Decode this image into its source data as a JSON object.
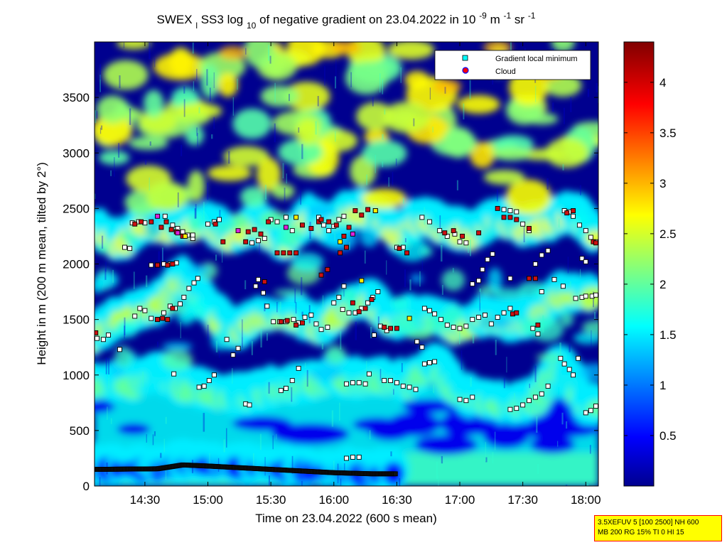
{
  "chart_data": {
    "type": "heatmap",
    "title": {
      "prefix": "SWEX",
      "prefix_sub": "l",
      "mid": "SS3 log",
      "mid_sub": "10",
      "text": " of negative gradient on 23.04.2022 in 10",
      "exp1": "-9",
      "unit1": " m",
      "exp2": "-1",
      "unit2": " sr",
      "exp3": "-1"
    },
    "xlabel": "Time on 23.04.2022 (600 s mean)",
    "ylabel": "Height in m (200 m mean, tilted by 2°)",
    "x_range_hours": [
      14.1,
      18.1
    ],
    "y_range_m": [
      0,
      4000
    ],
    "x_ticks": [
      {
        "value": 14.5,
        "label": "14:30"
      },
      {
        "value": 15.0,
        "label": "15:00"
      },
      {
        "value": 15.5,
        "label": "15:30"
      },
      {
        "value": 16.0,
        "label": "16:00"
      },
      {
        "value": 16.5,
        "label": "16:30"
      },
      {
        "value": 17.0,
        "label": "17:00"
      },
      {
        "value": 17.5,
        "label": "17:30"
      },
      {
        "value": 18.0,
        "label": "18:00"
      }
    ],
    "y_ticks": [
      {
        "value": 0,
        "label": "0"
      },
      {
        "value": 500,
        "label": "500"
      },
      {
        "value": 1000,
        "label": "1000"
      },
      {
        "value": 1500,
        "label": "1500"
      },
      {
        "value": 2000,
        "label": "2000"
      },
      {
        "value": 2500,
        "label": "2500"
      },
      {
        "value": 3000,
        "label": "3000"
      },
      {
        "value": 3500,
        "label": "3500"
      }
    ],
    "colorbar": {
      "range": [
        0,
        4.4
      ],
      "colormap": "jet",
      "ticks": [
        {
          "value": 0.5,
          "label": "0.5"
        },
        {
          "value": 1,
          "label": "1"
        },
        {
          "value": 1.5,
          "label": "1.5"
        },
        {
          "value": 2,
          "label": "2"
        },
        {
          "value": 2.5,
          "label": "2.5"
        },
        {
          "value": 3,
          "label": "3"
        },
        {
          "value": 3.5,
          "label": "3.5"
        },
        {
          "value": 4,
          "label": "4"
        }
      ]
    },
    "legend": {
      "placement": "top-right",
      "entries": [
        {
          "label": "Gradient local minimum",
          "marker": "square",
          "color": "#00ffff"
        },
        {
          "label": "Cloud",
          "marker": "circle",
          "color": "#ff0000"
        }
      ]
    },
    "layers": [
      {
        "name": "surface",
        "path": [
          [
            14.1,
            150
          ],
          [
            14.6,
            155
          ],
          [
            14.8,
            190
          ],
          [
            15.0,
            180
          ],
          [
            15.5,
            150
          ],
          [
            16.0,
            120
          ],
          [
            16.3,
            110
          ],
          [
            16.5,
            110
          ]
        ],
        "level": 0.5
      },
      {
        "name": "low",
        "path": [
          [
            14.1,
            1330
          ],
          [
            14.3,
            1500
          ],
          [
            14.6,
            1600
          ],
          [
            14.8,
            1850
          ],
          [
            15.0,
            1600
          ],
          [
            15.2,
            1350
          ],
          [
            15.4,
            1500
          ],
          [
            15.7,
            1500
          ],
          [
            15.9,
            1400
          ],
          [
            16.1,
            1600
          ],
          [
            16.3,
            1650
          ],
          [
            16.45,
            1450
          ],
          [
            16.6,
            1500
          ],
          [
            16.8,
            1500
          ],
          [
            17.0,
            1400
          ],
          [
            17.2,
            1500
          ],
          [
            17.4,
            1450
          ],
          [
            17.6,
            1500
          ],
          [
            17.8,
            1700
          ],
          [
            18.1,
            1700
          ]
        ],
        "level": 2.4
      },
      {
        "name": "mid",
        "path": [
          [
            14.1,
            2300
          ],
          [
            14.3,
            2150
          ],
          [
            14.5,
            2350
          ],
          [
            14.7,
            2300
          ],
          [
            15.0,
            2350
          ],
          [
            15.2,
            2200
          ],
          [
            15.4,
            2350
          ],
          [
            15.6,
            2150
          ],
          [
            15.8,
            2400
          ],
          [
            16.0,
            2300
          ],
          [
            16.1,
            2450
          ],
          [
            16.3,
            2450
          ],
          [
            16.5,
            2250
          ],
          [
            16.7,
            2400
          ],
          [
            16.9,
            2300
          ],
          [
            17.1,
            2250
          ],
          [
            17.3,
            2400
          ],
          [
            17.5,
            2300
          ],
          [
            17.7,
            2350
          ],
          [
            17.9,
            2450
          ],
          [
            18.1,
            2200
          ]
        ],
        "level": 2.6
      },
      {
        "name": "lower",
        "path": [
          [
            14.1,
            900
          ],
          [
            14.4,
            900
          ],
          [
            14.6,
            1000
          ],
          [
            14.8,
            880
          ],
          [
            15.1,
            800
          ],
          [
            15.3,
            780
          ],
          [
            15.5,
            850
          ],
          [
            15.8,
            900
          ],
          [
            16.0,
            950
          ],
          [
            16.2,
            930
          ],
          [
            16.4,
            950
          ],
          [
            16.6,
            900
          ],
          [
            16.8,
            1100
          ],
          [
            17.0,
            800
          ],
          [
            17.2,
            750
          ],
          [
            17.4,
            700
          ],
          [
            17.6,
            750
          ],
          [
            17.8,
            1100
          ],
          [
            18.0,
            700
          ],
          [
            18.1,
            700
          ]
        ],
        "level": 2.0
      }
    ],
    "gradient_minima": [
      [
        14.12,
        1330
      ],
      [
        14.17,
        1320
      ],
      [
        14.21,
        1360
      ],
      [
        14.3,
        1230
      ],
      [
        14.34,
        2150
      ],
      [
        14.38,
        2140
      ],
      [
        14.42,
        1530
      ],
      [
        14.46,
        1600
      ],
      [
        14.5,
        1580
      ],
      [
        14.55,
        1510
      ],
      [
        14.6,
        1500
      ],
      [
        14.65,
        1560
      ],
      [
        14.7,
        1620
      ],
      [
        14.74,
        1600
      ],
      [
        14.78,
        1640
      ],
      [
        14.81,
        1700
      ],
      [
        14.85,
        1780
      ],
      [
        14.89,
        1830
      ],
      [
        14.92,
        1870
      ],
      [
        14.55,
        1990
      ],
      [
        14.6,
        1990
      ],
      [
        14.65,
        2000
      ],
      [
        14.7,
        2000
      ],
      [
        14.75,
        2010
      ],
      [
        14.4,
        2370
      ],
      [
        14.45,
        2380
      ],
      [
        14.5,
        2370
      ],
      [
        14.66,
        2430
      ],
      [
        14.72,
        2350
      ],
      [
        14.76,
        2320
      ],
      [
        14.8,
        2290
      ],
      [
        14.84,
        2260
      ],
      [
        14.88,
        2230
      ],
      [
        14.73,
        1010
      ],
      [
        14.93,
        890
      ],
      [
        14.97,
        900
      ],
      [
        15.01,
        950
      ],
      [
        15.05,
        1000
      ],
      [
        15.0,
        2360
      ],
      [
        15.05,
        2380
      ],
      [
        15.09,
        2400
      ],
      [
        15.15,
        1320
      ],
      [
        15.2,
        1180
      ],
      [
        15.24,
        1240
      ],
      [
        15.3,
        740
      ],
      [
        15.33,
        730
      ],
      [
        15.38,
        1800
      ],
      [
        15.4,
        1860
      ],
      [
        15.44,
        1740
      ],
      [
        15.47,
        1620
      ],
      [
        15.35,
        2190
      ],
      [
        15.4,
        2210
      ],
      [
        15.45,
        2230
      ],
      [
        15.5,
        2400
      ],
      [
        15.55,
        2380
      ],
      [
        15.62,
        2420
      ],
      [
        15.67,
        2300
      ],
      [
        15.52,
        1480
      ],
      [
        15.57,
        1480
      ],
      [
        15.62,
        1480
      ],
      [
        15.68,
        1500
      ],
      [
        15.72,
        1470
      ],
      [
        15.77,
        1520
      ],
      [
        15.82,
        1540
      ],
      [
        15.86,
        1460
      ],
      [
        15.9,
        1410
      ],
      [
        15.95,
        1430
      ],
      [
        15.58,
        860
      ],
      [
        15.62,
        880
      ],
      [
        15.67,
        950
      ],
      [
        15.72,
        1060
      ],
      [
        15.88,
        2420
      ],
      [
        15.92,
        2350
      ],
      [
        15.96,
        2300
      ],
      [
        16.0,
        2340
      ],
      [
        16.04,
        2400
      ],
      [
        16.08,
        2430
      ],
      [
        16.0,
        1650
      ],
      [
        16.04,
        1700
      ],
      [
        16.07,
        1590
      ],
      [
        16.12,
        1560
      ],
      [
        16.17,
        1560
      ],
      [
        16.22,
        1600
      ],
      [
        16.27,
        1650
      ],
      [
        16.31,
        1700
      ],
      [
        16.35,
        1750
      ],
      [
        16.08,
        1800
      ],
      [
        16.1,
        920
      ],
      [
        16.15,
        930
      ],
      [
        16.2,
        930
      ],
      [
        16.25,
        920
      ],
      [
        16.1,
        250
      ],
      [
        16.15,
        260
      ],
      [
        16.2,
        260
      ],
      [
        16.28,
        1010
      ],
      [
        16.32,
        1360
      ],
      [
        16.37,
        1440
      ],
      [
        16.42,
        1400
      ],
      [
        16.4,
        950
      ],
      [
        16.45,
        950
      ],
      [
        16.5,
        930
      ],
      [
        16.55,
        900
      ],
      [
        16.6,
        890
      ],
      [
        16.65,
        870
      ],
      [
        16.5,
        2150
      ],
      [
        16.55,
        2150
      ],
      [
        16.72,
        1100
      ],
      [
        16.76,
        1110
      ],
      [
        16.8,
        1120
      ],
      [
        16.72,
        1600
      ],
      [
        16.76,
        1580
      ],
      [
        16.8,
        1550
      ],
      [
        16.85,
        1500
      ],
      [
        16.9,
        1450
      ],
      [
        16.95,
        1430
      ],
      [
        17.0,
        1420
      ],
      [
        17.05,
        1440
      ],
      [
        17.1,
        1500
      ],
      [
        17.15,
        1520
      ],
      [
        17.2,
        1540
      ],
      [
        16.7,
        2420
      ],
      [
        16.76,
        2380
      ],
      [
        16.84,
        2300
      ],
      [
        16.9,
        2250
      ],
      [
        16.96,
        2270
      ],
      [
        17.0,
        2200
      ],
      [
        17.05,
        2190
      ],
      [
        17.1,
        1820
      ],
      [
        17.15,
        1850
      ],
      [
        17.18,
        1950
      ],
      [
        17.22,
        2040
      ],
      [
        17.26,
        2090
      ],
      [
        17.0,
        780
      ],
      [
        17.05,
        770
      ],
      [
        17.1,
        800
      ],
      [
        17.25,
        1460
      ],
      [
        17.3,
        1520
      ],
      [
        17.35,
        1560
      ],
      [
        17.4,
        1600
      ],
      [
        17.35,
        2490
      ],
      [
        17.4,
        2480
      ],
      [
        17.45,
        2470
      ],
      [
        17.5,
        2360
      ],
      [
        17.55,
        2300
      ],
      [
        17.4,
        690
      ],
      [
        17.45,
        700
      ],
      [
        17.5,
        730
      ],
      [
        17.55,
        770
      ],
      [
        17.6,
        800
      ],
      [
        17.65,
        830
      ],
      [
        17.7,
        900
      ],
      [
        17.6,
        2000
      ],
      [
        17.65,
        2080
      ],
      [
        17.7,
        2120
      ],
      [
        17.58,
        1420
      ],
      [
        17.62,
        1370
      ],
      [
        17.8,
        1150
      ],
      [
        17.83,
        1100
      ],
      [
        17.87,
        1050
      ],
      [
        17.9,
        1000
      ],
      [
        17.94,
        1150
      ],
      [
        17.83,
        2480
      ],
      [
        17.87,
        2470
      ],
      [
        17.9,
        2430
      ],
      [
        17.95,
        2350
      ],
      [
        18.0,
        2300
      ],
      [
        18.04,
        2240
      ],
      [
        18.08,
        2200
      ],
      [
        17.92,
        1690
      ],
      [
        17.97,
        1700
      ],
      [
        18.0,
        1710
      ],
      [
        18.05,
        1710
      ],
      [
        18.08,
        1720
      ],
      [
        17.97,
        2050
      ],
      [
        18.0,
        2020
      ],
      [
        18.0,
        660
      ],
      [
        18.04,
        680
      ],
      [
        18.08,
        720
      ],
      [
        17.4,
        1870
      ],
      [
        17.65,
        1750
      ],
      [
        17.75,
        1860
      ],
      [
        17.82,
        1800
      ],
      [
        16.66,
        1300
      ],
      [
        16.7,
        1250
      ],
      [
        14.88,
        2260
      ]
    ],
    "cloud_points": [
      [
        14.11,
        1380
      ],
      [
        14.42,
        2360
      ],
      [
        14.47,
        2380
      ],
      [
        14.55,
        2380
      ],
      [
        14.63,
        2330
      ],
      [
        14.67,
        2380
      ],
      [
        14.71,
        2310
      ],
      [
        14.75,
        2290
      ],
      [
        14.8,
        2250
      ],
      [
        14.6,
        1990
      ],
      [
        14.68,
        1990
      ],
      [
        14.72,
        2000
      ],
      [
        14.6,
        1500
      ],
      [
        14.64,
        1510
      ],
      [
        14.68,
        1500
      ],
      [
        14.72,
        1600
      ],
      [
        15.06,
        2360
      ],
      [
        15.12,
        2200
      ],
      [
        15.3,
        2200
      ],
      [
        15.32,
        2290
      ],
      [
        15.37,
        2310
      ],
      [
        15.42,
        2270
      ],
      [
        15.45,
        1840
      ],
      [
        15.48,
        2380
      ],
      [
        15.55,
        2100
      ],
      [
        15.6,
        2100
      ],
      [
        15.65,
        2100
      ],
      [
        15.7,
        2100
      ],
      [
        15.75,
        2350
      ],
      [
        15.82,
        2320
      ],
      [
        15.88,
        2380
      ],
      [
        15.9,
        1900
      ],
      [
        15.95,
        1950
      ],
      [
        15.58,
        1480
      ],
      [
        15.63,
        1490
      ],
      [
        15.7,
        1450
      ],
      [
        15.75,
        1470
      ],
      [
        15.9,
        2400
      ],
      [
        15.96,
        2380
      ],
      [
        16.02,
        2350
      ],
      [
        16.08,
        2250
      ],
      [
        16.12,
        2330
      ],
      [
        16.17,
        2480
      ],
      [
        16.22,
        2440
      ],
      [
        16.27,
        2490
      ],
      [
        16.33,
        2480
      ],
      [
        16.05,
        2100
      ],
      [
        16.1,
        2150
      ],
      [
        16.15,
        1650
      ],
      [
        16.2,
        1570
      ],
      [
        16.25,
        1600
      ],
      [
        16.3,
        1680
      ],
      [
        16.4,
        1430
      ],
      [
        16.45,
        1420
      ],
      [
        16.5,
        1420
      ],
      [
        16.52,
        2140
      ],
      [
        16.58,
        2100
      ],
      [
        16.88,
        2280
      ],
      [
        16.95,
        2300
      ],
      [
        17.02,
        2250
      ],
      [
        17.15,
        2280
      ],
      [
        17.3,
        2500
      ],
      [
        17.35,
        2420
      ],
      [
        17.4,
        2420
      ],
      [
        17.45,
        2400
      ],
      [
        17.55,
        2320
      ],
      [
        17.55,
        1870
      ],
      [
        17.6,
        1870
      ],
      [
        17.62,
        1450
      ],
      [
        17.42,
        1550
      ],
      [
        17.45,
        1560
      ],
      [
        17.85,
        2460
      ],
      [
        17.9,
        2480
      ],
      [
        18.06,
        2200
      ],
      [
        18.08,
        2190
      ]
    ],
    "yellow_points": [
      [
        16.22,
        1850
      ],
      [
        16.05,
        2200
      ],
      [
        16.33,
        2480
      ],
      [
        14.82,
        2250
      ],
      [
        16.6,
        1510
      ],
      [
        15.7,
        2420
      ]
    ],
    "magenta_points": [
      [
        14.6,
        2430
      ],
      [
        14.76,
        2280
      ],
      [
        15.24,
        2300
      ],
      [
        15.62,
        2330
      ],
      [
        16.15,
        2270
      ]
    ]
  }
}
